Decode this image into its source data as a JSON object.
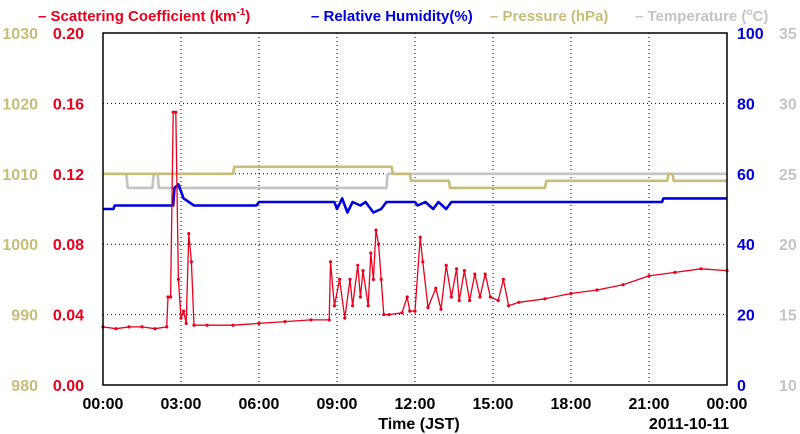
{
  "chart_data": {
    "type": "line",
    "title": "",
    "xlabel": "Time (JST)",
    "date_label": "2011-10-11",
    "x_ticks": [
      "00:00",
      "03:00",
      "06:00",
      "09:00",
      "12:00",
      "15:00",
      "18:00",
      "21:00",
      "00:00"
    ],
    "x_range_hours": [
      0,
      24
    ],
    "grid": true,
    "legend_position": "top",
    "axes": {
      "pressure": {
        "ticks": [
          "980",
          "990",
          "1000",
          "1010",
          "1020",
          "1030"
        ],
        "range": [
          980,
          1030
        ],
        "color": "#c8bd78",
        "side": "left-outer"
      },
      "scattering": {
        "ticks": [
          "0.00",
          "0.04",
          "0.08",
          "0.12",
          "0.16",
          "0.20"
        ],
        "range": [
          0,
          0.2
        ],
        "color": "#e8001c",
        "side": "left-inner"
      },
      "humidity": {
        "ticks": [
          "0",
          "20",
          "40",
          "60",
          "80",
          "100"
        ],
        "range": [
          0,
          100
        ],
        "color": "#0000dd",
        "side": "right-inner"
      },
      "temperature": {
        "ticks": [
          "10",
          "15",
          "20",
          "25",
          "30",
          "35"
        ],
        "range": [
          10,
          35
        ],
        "color": "#c4c4c4",
        "side": "right-outer"
      }
    },
    "legend": [
      {
        "prefix": "–",
        "text": "Scattering Coefficient (km",
        "sup": "-1",
        "after": ")",
        "color": "#e8001c"
      },
      {
        "prefix": "–",
        "text": "Relative Humidity(%)",
        "sup": "",
        "after": "",
        "color": "#0000dd"
      },
      {
        "prefix": "–",
        "text": "Pressure (hPa)",
        "sup": "",
        "after": "",
        "color": "#c8bd78"
      },
      {
        "prefix": "–",
        "text": "Temperature (",
        "sup": "o",
        "after": "C)",
        "color": "#c4c4c4"
      }
    ],
    "series": [
      {
        "name": "Scattering Coefficient (km-1)",
        "axis": "scattering",
        "color": "#e8001c",
        "markers": true,
        "points": [
          [
            0,
            0.033
          ],
          [
            0.5,
            0.032
          ],
          [
            1,
            0.033
          ],
          [
            1.5,
            0.033
          ],
          [
            2,
            0.032
          ],
          [
            2.45,
            0.033
          ],
          [
            2.5,
            0.05
          ],
          [
            2.6,
            0.05
          ],
          [
            2.7,
            0.155
          ],
          [
            2.8,
            0.155
          ],
          [
            2.9,
            0.06
          ],
          [
            3.0,
            0.038
          ],
          [
            3.1,
            0.042
          ],
          [
            3.2,
            0.035
          ],
          [
            3.3,
            0.086
          ],
          [
            3.4,
            0.07
          ],
          [
            3.5,
            0.034
          ],
          [
            4,
            0.034
          ],
          [
            5,
            0.034
          ],
          [
            6,
            0.035
          ],
          [
            7,
            0.036
          ],
          [
            8,
            0.037
          ],
          [
            8.7,
            0.037
          ],
          [
            8.75,
            0.07
          ],
          [
            8.9,
            0.045
          ],
          [
            9.1,
            0.06
          ],
          [
            9.3,
            0.038
          ],
          [
            9.5,
            0.06
          ],
          [
            9.6,
            0.045
          ],
          [
            9.8,
            0.068
          ],
          [
            9.9,
            0.05
          ],
          [
            10.0,
            0.065
          ],
          [
            10.2,
            0.045
          ],
          [
            10.3,
            0.075
          ],
          [
            10.4,
            0.06
          ],
          [
            10.5,
            0.088
          ],
          [
            10.6,
            0.08
          ],
          [
            10.7,
            0.06
          ],
          [
            10.8,
            0.04
          ],
          [
            11,
            0.04
          ],
          [
            11.5,
            0.041
          ],
          [
            11.7,
            0.05
          ],
          [
            11.8,
            0.042
          ],
          [
            12,
            0.042
          ],
          [
            12.2,
            0.084
          ],
          [
            12.3,
            0.07
          ],
          [
            12.5,
            0.044
          ],
          [
            12.8,
            0.055
          ],
          [
            13.0,
            0.043
          ],
          [
            13.2,
            0.068
          ],
          [
            13.4,
            0.05
          ],
          [
            13.6,
            0.066
          ],
          [
            13.7,
            0.048
          ],
          [
            13.9,
            0.065
          ],
          [
            14.1,
            0.048
          ],
          [
            14.3,
            0.063
          ],
          [
            14.5,
            0.05
          ],
          [
            14.7,
            0.063
          ],
          [
            14.9,
            0.05
          ],
          [
            15.2,
            0.048
          ],
          [
            15.4,
            0.06
          ],
          [
            15.6,
            0.045
          ],
          [
            16,
            0.047
          ],
          [
            17,
            0.049
          ],
          [
            18,
            0.052
          ],
          [
            19,
            0.054
          ],
          [
            20,
            0.057
          ],
          [
            21,
            0.062
          ],
          [
            22,
            0.064
          ],
          [
            23,
            0.066
          ],
          [
            24,
            0.065
          ]
        ]
      },
      {
        "name": "Relative Humidity(%)",
        "axis": "humidity",
        "color": "#0000dd",
        "markers": false,
        "points": [
          [
            0,
            50
          ],
          [
            0.4,
            50
          ],
          [
            0.45,
            51
          ],
          [
            2.7,
            51
          ],
          [
            2.75,
            56
          ],
          [
            2.9,
            57
          ],
          [
            3.1,
            53
          ],
          [
            3.5,
            51
          ],
          [
            5.9,
            51
          ],
          [
            6,
            52
          ],
          [
            8.9,
            52
          ],
          [
            9.0,
            50
          ],
          [
            9.2,
            53
          ],
          [
            9.4,
            49
          ],
          [
            9.6,
            52
          ],
          [
            9.9,
            51
          ],
          [
            10.1,
            52
          ],
          [
            10.4,
            49
          ],
          [
            10.7,
            50
          ],
          [
            10.9,
            52
          ],
          [
            12,
            52
          ],
          [
            12.1,
            51
          ],
          [
            12.4,
            52
          ],
          [
            12.7,
            50
          ],
          [
            12.9,
            52
          ],
          [
            13.2,
            50
          ],
          [
            13.4,
            52
          ],
          [
            21.5,
            52
          ],
          [
            21.55,
            53
          ],
          [
            24,
            53
          ]
        ]
      },
      {
        "name": "Pressure (hPa)",
        "axis": "pressure",
        "color": "#c8bd78",
        "markers": false,
        "points": [
          [
            0,
            1010
          ],
          [
            5.0,
            1010
          ],
          [
            5.05,
            1011
          ],
          [
            11.1,
            1011
          ],
          [
            11.15,
            1010
          ],
          [
            11.8,
            1010
          ],
          [
            11.85,
            1009
          ],
          [
            13.3,
            1009
          ],
          [
            13.35,
            1008
          ],
          [
            17.0,
            1008
          ],
          [
            17.05,
            1009
          ],
          [
            21.7,
            1009
          ],
          [
            21.75,
            1010
          ],
          [
            21.9,
            1010
          ],
          [
            21.95,
            1009
          ],
          [
            24,
            1009
          ]
        ]
      },
      {
        "name": "Temperature (oC)",
        "axis": "temperature",
        "color": "#c4c4c4",
        "markers": false,
        "points": [
          [
            0,
            25
          ],
          [
            0.9,
            25
          ],
          [
            0.95,
            24
          ],
          [
            1.9,
            24
          ],
          [
            1.95,
            25
          ],
          [
            2.1,
            25
          ],
          [
            2.15,
            24
          ],
          [
            10.9,
            24
          ],
          [
            10.95,
            25
          ],
          [
            24,
            25
          ]
        ]
      }
    ]
  }
}
